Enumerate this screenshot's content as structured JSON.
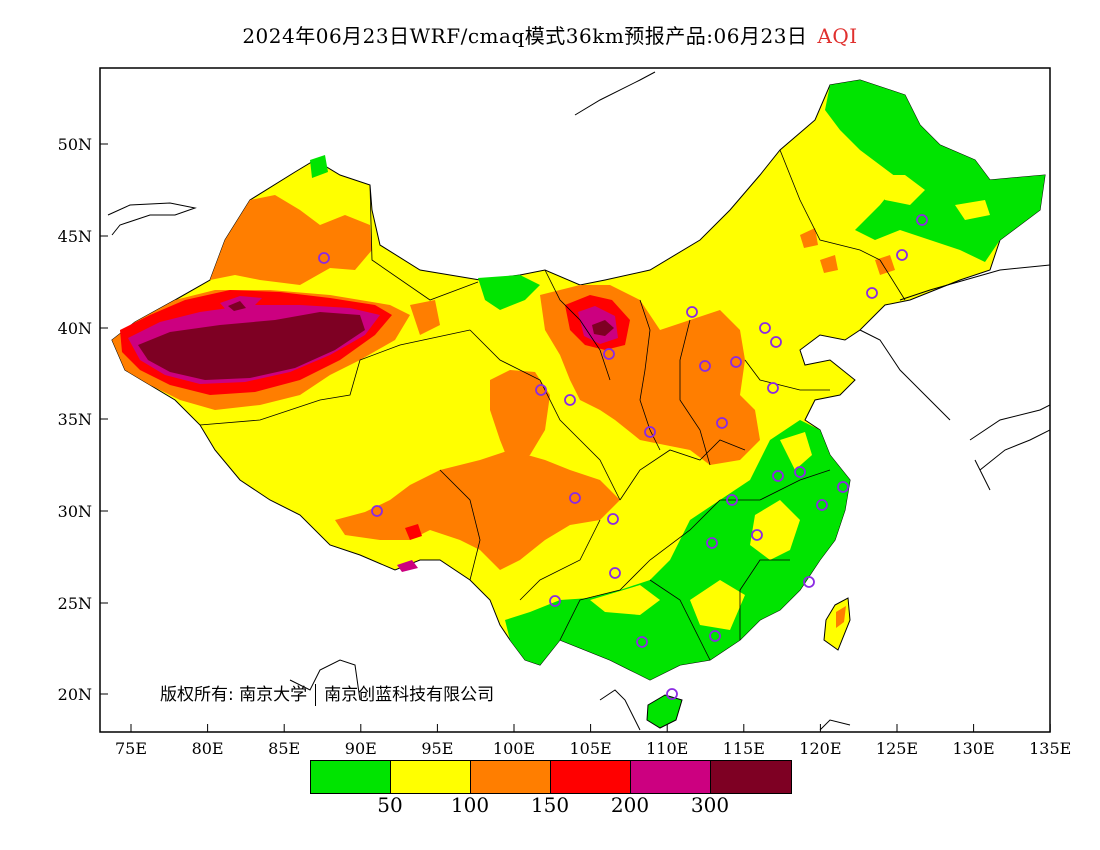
{
  "title": {
    "main": "2024年06月23日WRF/cmaq模式36km预报产品:06月23日",
    "variable": "AQI"
  },
  "map": {
    "lat_ticks": [
      "50N",
      "45N",
      "40N",
      "35N",
      "30N",
      "25N",
      "20N"
    ],
    "lon_ticks": [
      "75E",
      "80E",
      "85E",
      "90E",
      "95E",
      "100E",
      "105E",
      "110E",
      "115E",
      "120E",
      "125E",
      "130E",
      "135E"
    ]
  },
  "copyright": {
    "owner_a": "版权所有: 南京大学",
    "owner_b": "南京创蓝科技有限公司"
  },
  "legend": {
    "colors": [
      "#00e400",
      "#ffff00",
      "#ff7e00",
      "#ff0000",
      "#cc0080",
      "#7e0023"
    ],
    "labels": [
      "50",
      "100",
      "150",
      "200",
      "300"
    ]
  }
}
